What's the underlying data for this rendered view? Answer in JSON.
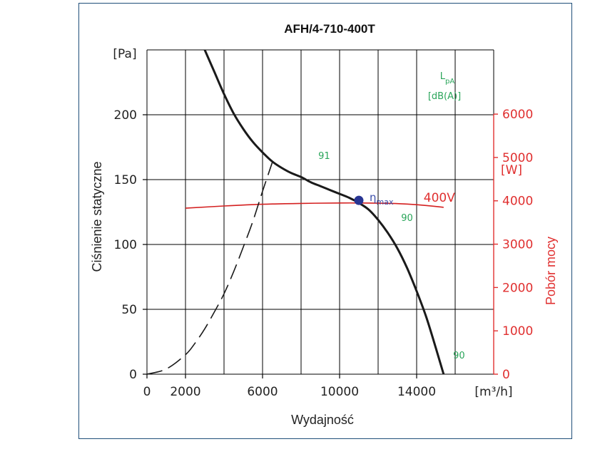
{
  "chart_data": {
    "type": "line",
    "title": "AFH/4-710-400T",
    "xlabel": "Wydajność",
    "ylabel": "Ciśnienie statyczne",
    "y2label": "Pobór mocy",
    "x_unit": "[m³/h]",
    "y_unit": "[Pa]",
    "y2_unit": "[W]",
    "xlim": [
      0,
      18000
    ],
    "ylim": [
      0,
      250
    ],
    "y2lim": [
      0,
      6000
    ],
    "x_ticks": [
      0,
      2000,
      6000,
      10000,
      14000
    ],
    "y_ticks": [
      0,
      50,
      100,
      150,
      200
    ],
    "y2_ticks": [
      0,
      1000,
      2000,
      3000,
      4000,
      5000,
      6000
    ],
    "grid": true,
    "noise_label": {
      "main": "L",
      "sub": "pA",
      "unit": "[dB(A)]"
    },
    "series": [
      {
        "key": "pressure",
        "axis": "y",
        "color": "#1a1a1a",
        "x": [
          3000,
          3500,
          4000,
          4500,
          5000,
          5500,
          6000,
          6500,
          7000,
          7500,
          8000,
          8500,
          9000,
          9500,
          10000,
          10500,
          11000,
          11500,
          12000,
          12500,
          13000,
          13500,
          14000,
          14500,
          15000,
          15400
        ],
        "values": [
          250,
          233,
          216,
          201,
          189,
          179,
          171,
          164,
          159,
          155,
          152,
          148,
          145,
          142,
          139,
          136,
          132,
          127,
          119,
          109,
          97,
          82,
          64,
          44,
          20,
          0
        ]
      },
      {
        "key": "power",
        "axis": "y2",
        "name": "400V",
        "color": "#d42020",
        "x": [
          2000,
          4000,
          6000,
          8000,
          10000,
          11000,
          12000,
          13000,
          14000,
          15000,
          15400
        ],
        "values": [
          3830,
          3880,
          3920,
          3940,
          3950,
          3950,
          3945,
          3935,
          3910,
          3870,
          3850
        ]
      },
      {
        "key": "system",
        "axis": "y",
        "style": "dashed",
        "color": "#1a1a1a",
        "x": [
          0,
          1000,
          2000,
          2500,
          3000,
          3500,
          4000,
          4500,
          5000,
          5500,
          6000,
          6500
        ],
        "values": [
          0,
          4,
          15,
          24,
          35,
          48,
          62,
          79,
          98,
          118,
          141,
          163
        ]
      }
    ],
    "annotations": [
      {
        "key": "eta",
        "text": "η",
        "sub": "max",
        "x": 11000,
        "y": 134
      },
      {
        "key": "noise-91",
        "text": "91",
        "x": 9200,
        "y": 166
      },
      {
        "key": "noise-90a",
        "text": "90",
        "x": 13500,
        "y": 118
      },
      {
        "key": "noise-90b",
        "text": "90",
        "x": 16200,
        "y": 12
      }
    ],
    "point_color": "#283593"
  }
}
